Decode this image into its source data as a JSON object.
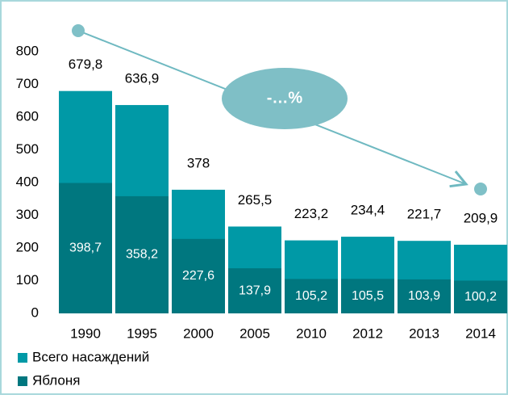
{
  "chart_data": {
    "type": "bar",
    "barmode": "overlay",
    "categories": [
      "1990",
      "1995",
      "2000",
      "2005",
      "2010",
      "2012",
      "2013",
      "2014"
    ],
    "series": [
      {
        "name": "Всего насаждений",
        "color": "#0099a6",
        "values": [
          679.8,
          636.9,
          378,
          265.5,
          223.2,
          234.4,
          221.7,
          209.9
        ],
        "value_labels": [
          "679,8",
          "636,9",
          "378",
          "265,5",
          "223,2",
          "234,4",
          "221,7",
          "209,9"
        ]
      },
      {
        "name": "Яблоня",
        "color": "#00777f",
        "values": [
          398.7,
          358.2,
          227.6,
          137.9,
          105.2,
          105.5,
          103.9,
          100.2
        ],
        "value_labels": [
          "398,7",
          "358,2",
          "227,6",
          "137,9",
          "105,2",
          "105,5",
          "103,9",
          "100,2"
        ]
      }
    ],
    "ylim": [
      0,
      800
    ],
    "yticks": [
      0,
      100,
      200,
      300,
      400,
      500,
      600,
      700,
      800
    ],
    "annotation": "-…%"
  }
}
